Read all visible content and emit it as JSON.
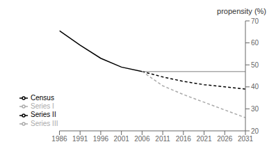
{
  "chart_data": {
    "type": "line",
    "ylabel": "propensity (%)",
    "series": [
      {
        "name": "Census",
        "color": "#000000",
        "line_style": "solid",
        "x": [
          1986,
          1991,
          1996,
          2001,
          2006
        ],
        "values": [
          65.5,
          59.0,
          53.0,
          49.0,
          47.0
        ]
      },
      {
        "name": "Series I",
        "color": "#aaaaaa",
        "line_style": "solid",
        "x": [
          2006,
          2031
        ],
        "values": [
          47.0,
          47.0
        ]
      },
      {
        "name": "Series II",
        "color": "#000000",
        "line_style": "dashed",
        "x": [
          2006,
          2011,
          2016,
          2021,
          2026,
          2031
        ],
        "values": [
          47.0,
          44.5,
          42.5,
          41.0,
          40.0,
          39.0
        ]
      },
      {
        "name": "Series III",
        "color": "#aaaaaa",
        "line_style": "dashed",
        "x": [
          2006,
          2011,
          2016,
          2021,
          2026,
          2031
        ],
        "values": [
          47.0,
          40.5,
          36.5,
          33.0,
          29.5,
          26.0
        ]
      }
    ],
    "xlim": [
      1986,
      2031
    ],
    "xticks": [
      1986,
      1991,
      1996,
      2001,
      2006,
      2011,
      2016,
      2021,
      2026,
      2031
    ],
    "ylim": [
      20,
      70
    ],
    "yticks": [
      20,
      30,
      40,
      50,
      60,
      70
    ],
    "grid": false,
    "legend": "lower left"
  }
}
